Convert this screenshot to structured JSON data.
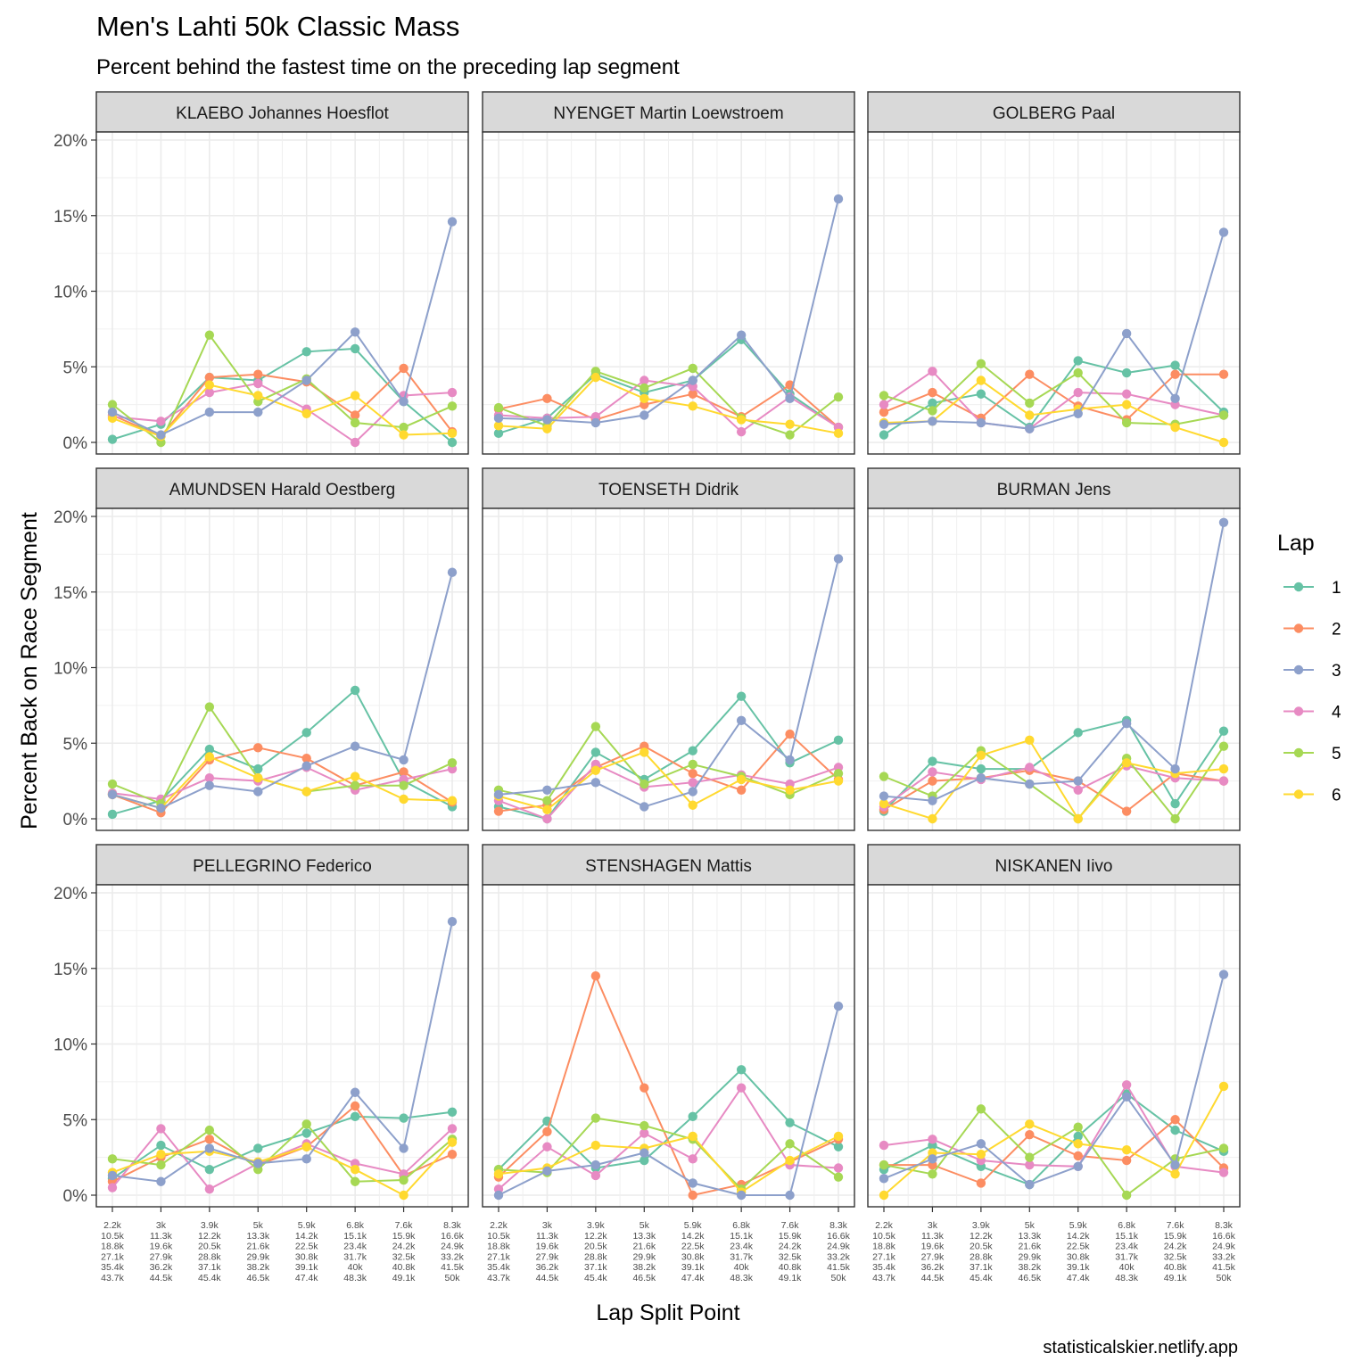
{
  "title": "Men's Lahti 50k Classic Mass",
  "subtitle": "Percent behind the fastest time on the preceding lap segment",
  "caption": "statisticalskier.netlify.app",
  "chart_data": {
    "type": "line",
    "facet": "wrap 3 columns",
    "xlabel": "Lap Split Point",
    "ylabel": "Percent Back on Race Segment",
    "ylim": [
      0,
      20
    ],
    "yticks": [
      "0%",
      "5%",
      "10%",
      "15%",
      "20%"
    ],
    "grid": true,
    "legend_title": "Lap",
    "legend_position": "right",
    "x_categories": [
      [
        "2.2k",
        "10.5k",
        "18.8k",
        "27.1k",
        "35.4k",
        "43.7k"
      ],
      [
        "3k",
        "11.3k",
        "19.6k",
        "27.9k",
        "36.2k",
        "44.5k"
      ],
      [
        "3.9k",
        "12.2k",
        "20.5k",
        "28.8k",
        "37.1k",
        "45.4k"
      ],
      [
        "5k",
        "13.3k",
        "21.6k",
        "29.9k",
        "38.2k",
        "46.5k"
      ],
      [
        "5.9k",
        "14.2k",
        "22.5k",
        "30.8k",
        "39.1k",
        "47.4k"
      ],
      [
        "6.8k",
        "15.1k",
        "23.4k",
        "31.7k",
        "40k",
        "48.3k"
      ],
      [
        "7.6k",
        "15.9k",
        "24.2k",
        "32.5k",
        "40.8k",
        "49.1k"
      ],
      [
        "8.3k",
        "16.6k",
        "24.9k",
        "33.2k",
        "41.5k",
        "50k"
      ]
    ],
    "series_colors": {
      "1": "#66c2a5",
      "2": "#fc8d62",
      "3": "#8da0cb",
      "4": "#e78ac3",
      "5": "#a6d854",
      "6": "#ffd92f"
    },
    "series_order": [
      "1",
      "2",
      "3",
      "4",
      "5",
      "6"
    ],
    "draw_order": [
      "1",
      "2",
      "4",
      "5",
      "6",
      "3"
    ],
    "panels": [
      {
        "name": "KLAEBO Johannes Hoesflot",
        "series": {
          "1": [
            0.2,
            1.2,
            4.3,
            4.1,
            6.0,
            6.2,
            2.7,
            0.0
          ],
          "2": [
            1.8,
            0.4,
            4.3,
            4.5,
            4.0,
            1.8,
            4.9,
            0.7
          ],
          "3": [
            2.0,
            0.5,
            2.0,
            2.0,
            4.1,
            7.3,
            2.7,
            14.6
          ],
          "4": [
            1.7,
            1.4,
            3.3,
            3.9,
            2.2,
            0.0,
            3.1,
            3.3
          ],
          "5": [
            2.5,
            0.0,
            7.1,
            2.7,
            4.2,
            1.3,
            1.0,
            2.4
          ],
          "6": [
            1.6,
            0.4,
            3.8,
            3.1,
            1.9,
            3.1,
            0.5,
            0.6
          ]
        }
      },
      {
        "name": "NYENGET Martin Loewstroem",
        "series": {
          "1": [
            0.6,
            1.6,
            4.5,
            3.3,
            4.1,
            6.8,
            3.2,
            1.0
          ],
          "2": [
            2.2,
            2.9,
            1.5,
            2.5,
            3.2,
            1.7,
            3.8,
            1.0
          ],
          "3": [
            1.6,
            1.5,
            1.3,
            1.8,
            4.1,
            7.1,
            2.9,
            16.1
          ],
          "4": [
            1.8,
            1.6,
            1.7,
            4.1,
            3.7,
            0.7,
            3.0,
            1.0
          ],
          "5": [
            2.3,
            1.1,
            4.7,
            3.6,
            4.9,
            1.6,
            0.5,
            3.0
          ],
          "6": [
            1.1,
            0.9,
            4.3,
            2.9,
            2.4,
            1.5,
            1.2,
            0.6
          ]
        }
      },
      {
        "name": "GOLBERG Paal",
        "series": {
          "1": [
            0.5,
            2.6,
            3.2,
            1.0,
            5.4,
            4.6,
            5.1,
            2.0
          ],
          "2": [
            2.0,
            3.3,
            1.6,
            4.5,
            2.4,
            1.5,
            4.5,
            4.5
          ],
          "3": [
            1.2,
            1.4,
            1.3,
            0.9,
            1.9,
            7.2,
            2.9,
            13.9
          ],
          "4": [
            2.5,
            4.7,
            1.3,
            0.9,
            3.3,
            3.2,
            2.5,
            1.8
          ],
          "5": [
            3.1,
            2.1,
            5.2,
            2.6,
            4.6,
            1.3,
            1.2,
            1.8
          ],
          "6": [
            1.3,
            1.4,
            4.1,
            1.8,
            2.2,
            2.5,
            1.0,
            0.0
          ]
        }
      },
      {
        "name": "AMUNDSEN Harald Oestberg",
        "series": {
          "1": [
            0.3,
            1.2,
            4.6,
            3.3,
            5.7,
            8.5,
            2.5,
            0.8
          ],
          "2": [
            1.6,
            0.4,
            3.9,
            4.7,
            4.0,
            2.2,
            3.1,
            1.1
          ],
          "3": [
            1.6,
            0.7,
            2.2,
            1.8,
            3.5,
            4.8,
            3.9,
            16.3
          ],
          "4": [
            1.7,
            1.3,
            2.7,
            2.5,
            3.4,
            1.9,
            2.6,
            3.3
          ],
          "5": [
            2.3,
            1.0,
            7.4,
            2.7,
            1.8,
            2.2,
            2.2,
            3.7
          ],
          "6": [
            1.6,
            0.7,
            4.1,
            2.7,
            1.8,
            2.8,
            1.3,
            1.2
          ]
        }
      },
      {
        "name": "TOENSETH Didrik",
        "series": {
          "1": [
            0.8,
            0.0,
            4.4,
            2.6,
            4.5,
            8.1,
            3.7,
            5.2
          ],
          "2": [
            0.5,
            0.9,
            3.4,
            4.8,
            3.0,
            1.9,
            5.6,
            2.6
          ],
          "3": [
            1.6,
            1.9,
            2.4,
            0.8,
            1.8,
            6.5,
            3.9,
            17.2
          ],
          "4": [
            1.2,
            0.0,
            3.6,
            2.1,
            2.4,
            2.9,
            2.3,
            3.4
          ],
          "5": [
            1.9,
            1.2,
            6.1,
            2.3,
            3.6,
            2.8,
            1.6,
            3.0
          ],
          "6": [
            1.5,
            0.6,
            3.2,
            4.4,
            0.9,
            2.6,
            1.9,
            2.5
          ]
        }
      },
      {
        "name": "BURMAN Jens",
        "series": {
          "1": [
            0.5,
            3.8,
            3.3,
            3.3,
            5.7,
            6.5,
            1.0,
            5.8
          ],
          "2": [
            0.6,
            2.5,
            2.7,
            3.2,
            2.5,
            0.5,
            3.0,
            2.5
          ],
          "3": [
            1.5,
            1.2,
            2.7,
            2.3,
            2.5,
            6.3,
            3.3,
            19.6
          ],
          "4": [
            0.8,
            3.1,
            2.6,
            3.4,
            1.9,
            3.5,
            2.7,
            2.5
          ],
          "5": [
            2.8,
            1.5,
            4.5,
            2.3,
            0.0,
            4.0,
            0.0,
            4.8
          ],
          "6": [
            1.0,
            0.0,
            4.2,
            5.2,
            0.0,
            3.7,
            3.0,
            3.3
          ]
        }
      },
      {
        "name": "PELLEGRINO Federico",
        "series": {
          "1": [
            1.1,
            3.3,
            1.7,
            3.1,
            4.1,
            5.2,
            5.1,
            5.5
          ],
          "2": [
            0.9,
            2.5,
            3.7,
            2.0,
            3.2,
            5.9,
            1.3,
            2.7
          ],
          "3": [
            1.3,
            0.9,
            3.1,
            2.1,
            2.4,
            6.8,
            3.1,
            18.1
          ],
          "4": [
            0.5,
            4.4,
            0.4,
            2.1,
            3.4,
            2.1,
            1.4,
            4.4
          ],
          "5": [
            2.4,
            2.0,
            4.3,
            1.7,
            4.7,
            0.9,
            1.0,
            3.7
          ],
          "6": [
            1.5,
            2.7,
            2.9,
            2.2,
            3.2,
            1.7,
            0.0,
            3.5
          ]
        }
      },
      {
        "name": "STENSHAGEN Mattis",
        "series": {
          "1": [
            1.7,
            4.9,
            1.8,
            2.3,
            5.2,
            8.3,
            4.8,
            3.2
          ],
          "2": [
            1.2,
            4.2,
            14.5,
            7.1,
            0.0,
            0.7,
            2.2,
            3.7
          ],
          "3": [
            0.0,
            1.6,
            2.0,
            2.8,
            0.8,
            0.0,
            0.0,
            12.5
          ],
          "4": [
            0.4,
            3.2,
            1.3,
            4.1,
            2.4,
            7.1,
            2.0,
            1.8
          ],
          "5": [
            1.7,
            1.5,
            5.1,
            4.6,
            3.7,
            0.4,
            3.4,
            1.2
          ],
          "6": [
            1.4,
            1.8,
            3.3,
            3.1,
            3.9,
            0.2,
            2.3,
            3.9
          ]
        }
      },
      {
        "name": "NISKANEN Iivo",
        "series": {
          "1": [
            1.7,
            3.3,
            1.9,
            0.7,
            3.9,
            6.7,
            4.3,
            2.9
          ],
          "2": [
            2.0,
            2.0,
            0.8,
            4.0,
            2.6,
            2.3,
            5.0,
            1.8
          ],
          "3": [
            1.1,
            2.4,
            3.4,
            0.7,
            1.9,
            6.5,
            2.0,
            14.6
          ],
          "4": [
            3.3,
            3.7,
            2.3,
            2.0,
            1.9,
            7.3,
            1.9,
            1.5
          ],
          "5": [
            2.0,
            1.4,
            5.7,
            2.5,
            4.5,
            0.0,
            2.4,
            3.1
          ],
          "6": [
            0.0,
            2.8,
            2.7,
            4.7,
            3.4,
            3.0,
            1.4,
            7.2
          ]
        }
      }
    ]
  }
}
